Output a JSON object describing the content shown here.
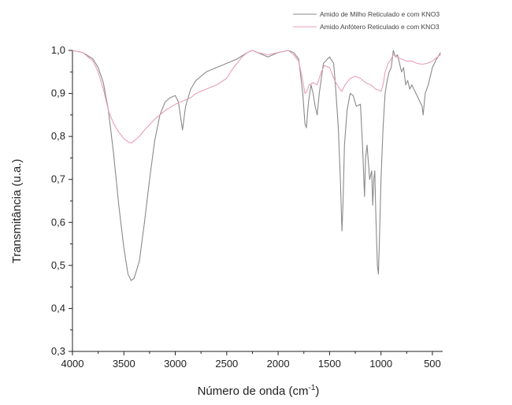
{
  "chart_data": {
    "type": "line",
    "xlabel": "Número de onda (cm",
    "xlabel_sup": "-1",
    "xlabel_end": ")",
    "ylabel": "Transmitância (u.a.)",
    "xlim": [
      4000,
      400
    ],
    "ylim": [
      0.3,
      1.0
    ],
    "x_ticks": [
      "4000",
      "3500",
      "3000",
      "2500",
      "2000",
      "1500",
      "1000",
      "500"
    ],
    "y_ticks": [
      "0,3",
      "0,4",
      "0,5",
      "0,6",
      "0,7",
      "0,8",
      "0,9",
      "1,0"
    ],
    "grid": false,
    "legend_position": "top-right",
    "series": [
      {
        "name": "Amido de Milho Reticulado e com KNO3",
        "color": "#8a8a8a",
        "points": [
          [
            4000,
            1.0
          ],
          [
            3900,
            0.995
          ],
          [
            3800,
            0.98
          ],
          [
            3750,
            0.96
          ],
          [
            3700,
            0.925
          ],
          [
            3650,
            0.86
          ],
          [
            3600,
            0.76
          ],
          [
            3550,
            0.64
          ],
          [
            3500,
            0.54
          ],
          [
            3460,
            0.48
          ],
          [
            3430,
            0.465
          ],
          [
            3400,
            0.47
          ],
          [
            3350,
            0.51
          ],
          [
            3300,
            0.6
          ],
          [
            3250,
            0.7
          ],
          [
            3200,
            0.79
          ],
          [
            3150,
            0.85
          ],
          [
            3100,
            0.88
          ],
          [
            3050,
            0.89
          ],
          [
            3000,
            0.895
          ],
          [
            2970,
            0.88
          ],
          [
            2930,
            0.815
          ],
          [
            2900,
            0.87
          ],
          [
            2850,
            0.91
          ],
          [
            2800,
            0.93
          ],
          [
            2700,
            0.95
          ],
          [
            2600,
            0.96
          ],
          [
            2500,
            0.97
          ],
          [
            2400,
            0.98
          ],
          [
            2300,
            0.995
          ],
          [
            2250,
            1.0
          ],
          [
            2200,
            0.995
          ],
          [
            2100,
            0.985
          ],
          [
            2000,
            0.995
          ],
          [
            1900,
            1.0
          ],
          [
            1850,
            0.995
          ],
          [
            1800,
            0.98
          ],
          [
            1760,
            0.9
          ],
          [
            1740,
            0.83
          ],
          [
            1725,
            0.82
          ],
          [
            1705,
            0.88
          ],
          [
            1680,
            0.92
          ],
          [
            1660,
            0.9
          ],
          [
            1640,
            0.87
          ],
          [
            1620,
            0.85
          ],
          [
            1600,
            0.9
          ],
          [
            1560,
            0.97
          ],
          [
            1500,
            0.985
          ],
          [
            1460,
            0.97
          ],
          [
            1440,
            0.91
          ],
          [
            1415,
            0.82
          ],
          [
            1395,
            0.7
          ],
          [
            1380,
            0.58
          ],
          [
            1370,
            0.64
          ],
          [
            1355,
            0.78
          ],
          [
            1330,
            0.86
          ],
          [
            1300,
            0.9
          ],
          [
            1270,
            0.895
          ],
          [
            1240,
            0.87
          ],
          [
            1200,
            0.875
          ],
          [
            1180,
            0.78
          ],
          [
            1160,
            0.66
          ],
          [
            1150,
            0.75
          ],
          [
            1135,
            0.78
          ],
          [
            1110,
            0.7
          ],
          [
            1090,
            0.72
          ],
          [
            1080,
            0.64
          ],
          [
            1070,
            0.7
          ],
          [
            1060,
            0.72
          ],
          [
            1050,
            0.62
          ],
          [
            1035,
            0.5
          ],
          [
            1025,
            0.48
          ],
          [
            1015,
            0.56
          ],
          [
            1000,
            0.7
          ],
          [
            980,
            0.82
          ],
          [
            960,
            0.9
          ],
          [
            940,
            0.93
          ],
          [
            920,
            0.95
          ],
          [
            900,
            0.96
          ],
          [
            880,
            1.0
          ],
          [
            860,
            0.985
          ],
          [
            840,
            0.99
          ],
          [
            820,
            0.97
          ],
          [
            800,
            0.95
          ],
          [
            780,
            0.96
          ],
          [
            760,
            0.92
          ],
          [
            740,
            0.93
          ],
          [
            720,
            0.91
          ],
          [
            700,
            0.92
          ],
          [
            660,
            0.9
          ],
          [
            640,
            0.89
          ],
          [
            620,
            0.88
          ],
          [
            600,
            0.87
          ],
          [
            590,
            0.85
          ],
          [
            570,
            0.9
          ],
          [
            540,
            0.92
          ],
          [
            500,
            0.96
          ],
          [
            460,
            0.98
          ],
          [
            420,
            0.995
          ]
        ]
      },
      {
        "name": "Amido Anfótero Reticulado e com KNO3",
        "color": "#e8a0b4",
        "points": [
          [
            4000,
            1.0
          ],
          [
            3900,
            0.995
          ],
          [
            3800,
            0.975
          ],
          [
            3750,
            0.95
          ],
          [
            3700,
            0.91
          ],
          [
            3650,
            0.86
          ],
          [
            3600,
            0.83
          ],
          [
            3550,
            0.81
          ],
          [
            3500,
            0.795
          ],
          [
            3450,
            0.786
          ],
          [
            3420,
            0.785
          ],
          [
            3400,
            0.79
          ],
          [
            3350,
            0.8
          ],
          [
            3300,
            0.815
          ],
          [
            3200,
            0.84
          ],
          [
            3100,
            0.86
          ],
          [
            3000,
            0.875
          ],
          [
            2900,
            0.885
          ],
          [
            2850,
            0.89
          ],
          [
            2800,
            0.9
          ],
          [
            2700,
            0.91
          ],
          [
            2600,
            0.92
          ],
          [
            2500,
            0.935
          ],
          [
            2450,
            0.955
          ],
          [
            2400,
            0.97
          ],
          [
            2350,
            0.985
          ],
          [
            2300,
            0.995
          ],
          [
            2250,
            1.0
          ],
          [
            2200,
            0.995
          ],
          [
            2100,
            0.99
          ],
          [
            2000,
            0.995
          ],
          [
            1900,
            1.0
          ],
          [
            1850,
            0.99
          ],
          [
            1800,
            0.975
          ],
          [
            1760,
            0.93
          ],
          [
            1740,
            0.9
          ],
          [
            1720,
            0.905
          ],
          [
            1700,
            0.92
          ],
          [
            1660,
            0.925
          ],
          [
            1620,
            0.92
          ],
          [
            1580,
            0.95
          ],
          [
            1550,
            0.965
          ],
          [
            1500,
            0.96
          ],
          [
            1450,
            0.93
          ],
          [
            1400,
            0.91
          ],
          [
            1380,
            0.905
          ],
          [
            1350,
            0.92
          ],
          [
            1300,
            0.935
          ],
          [
            1250,
            0.94
          ],
          [
            1200,
            0.935
          ],
          [
            1150,
            0.925
          ],
          [
            1100,
            0.92
          ],
          [
            1050,
            0.91
          ],
          [
            1000,
            0.905
          ],
          [
            980,
            0.92
          ],
          [
            960,
            0.95
          ],
          [
            930,
            0.97
          ],
          [
            900,
            0.98
          ],
          [
            880,
            0.99
          ],
          [
            850,
            0.985
          ],
          [
            800,
            0.98
          ],
          [
            750,
            0.975
          ],
          [
            700,
            0.975
          ],
          [
            650,
            0.97
          ],
          [
            600,
            0.968
          ],
          [
            550,
            0.97
          ],
          [
            500,
            0.975
          ],
          [
            450,
            0.985
          ],
          [
            420,
            0.99
          ]
        ]
      }
    ]
  }
}
